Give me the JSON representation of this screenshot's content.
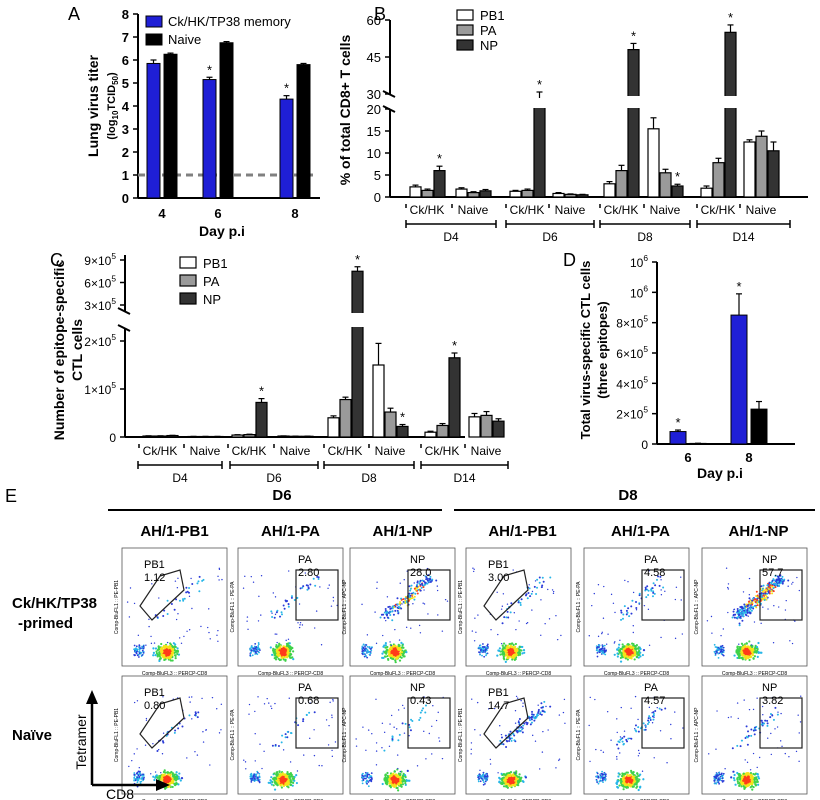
{
  "colors": {
    "blue": "#1f1fd6",
    "black": "#000000",
    "gray": "#9a9a9a",
    "dark": "#333333",
    "white": "#ffffff",
    "dash": "#808080"
  },
  "chart_data": [
    {
      "panel": "A",
      "type": "bar",
      "ylabel_line1": "Lung virus titer",
      "ylabel_line2": "(log",
      "ylabel_sub": "10",
      "ylabel_line2b": "TCID",
      "ylabel_sub2": "50",
      "ylabel_end": ")",
      "xlabel": "Day p.i",
      "categories": [
        "4",
        "6",
        "8"
      ],
      "ylim": [
        0,
        8
      ],
      "yticks": [
        "0",
        "1",
        "2",
        "3",
        "4",
        "5",
        "6",
        "7",
        "8"
      ],
      "reference_line": 1,
      "series": [
        {
          "name": "Ck/HK/TP38 memory",
          "color": "blue",
          "values": [
            5.85,
            5.15,
            4.3
          ],
          "errors": [
            0.15,
            0.1,
            0.15
          ],
          "stars": [
            false,
            true,
            true
          ]
        },
        {
          "name": "Naive",
          "color": "black",
          "values": [
            6.25,
            6.75,
            5.8
          ],
          "errors": [
            0.05,
            0.05,
            0.05
          ],
          "stars": [
            false,
            false,
            false
          ]
        }
      ]
    },
    {
      "panel": "B",
      "type": "bar",
      "ylabel": "% of total CD8+ T cells",
      "yticks_low": [
        "0",
        "5",
        "10",
        "15",
        "20"
      ],
      "yticks_high": [
        "30",
        "45",
        "60"
      ],
      "legend": [
        "PB1",
        "PA",
        "NP"
      ],
      "groups": [
        {
          "day": "D4",
          "cond": "Ck/HK",
          "PB1": 2.3,
          "PA": 1.5,
          "NP": 6.0,
          "e": [
            0.4,
            0.3,
            1.0
          ],
          "star": [
            false,
            false,
            true
          ]
        },
        {
          "day": "D4",
          "cond": "Naive",
          "PB1": 1.8,
          "PA": 1.0,
          "NP": 1.4,
          "e": [
            0.3,
            0.2,
            0.3
          ],
          "star": [
            false,
            false,
            false
          ]
        },
        {
          "day": "D6",
          "cond": "Ck/HK",
          "PB1": 1.3,
          "PA": 1.5,
          "NP": 25.0,
          "e": [
            0.2,
            0.3,
            2.0
          ],
          "star": [
            false,
            false,
            true
          ]
        },
        {
          "day": "D6",
          "cond": "Naive",
          "PB1": 0.8,
          "PA": 0.6,
          "NP": 0.5,
          "e": [
            0.2,
            0.1,
            0.1
          ],
          "star": [
            false,
            false,
            false
          ]
        },
        {
          "day": "D8",
          "cond": "Ck/HK",
          "PB1": 3.0,
          "PA": 6.0,
          "NP": 48.0,
          "e": [
            0.5,
            1.2,
            2.5
          ],
          "star": [
            false,
            false,
            true
          ]
        },
        {
          "day": "D8",
          "cond": "Naive",
          "PB1": 15.5,
          "PA": 5.5,
          "NP": 2.5,
          "e": [
            2.5,
            0.8,
            0.4
          ],
          "star": [
            false,
            false,
            true
          ]
        },
        {
          "day": "D14",
          "cond": "Ck/HK",
          "PB1": 2.0,
          "PA": 7.8,
          "NP": 55.0,
          "e": [
            0.5,
            1.0,
            3.0
          ],
          "star": [
            false,
            false,
            true
          ]
        },
        {
          "day": "D14",
          "cond": "Naive",
          "PB1": 12.5,
          "PA": 13.8,
          "NP": 10.5,
          "e": [
            0.5,
            1.2,
            2.0
          ],
          "star": [
            false,
            false,
            false
          ]
        }
      ]
    },
    {
      "panel": "C",
      "type": "bar",
      "ylabel_line1": "Number of epitope-specific",
      "ylabel_line2": "CTL cells",
      "yticks_low": [
        "0",
        "1×10",
        "2×10"
      ],
      "yticks_high": [
        "3×10",
        "6×10",
        "9×10"
      ],
      "ytick_exp": "5",
      "legend": [
        "PB1",
        "PA",
        "NP"
      ],
      "groups": [
        {
          "day": "D4",
          "cond": "Ck/HK",
          "PB1": 2000,
          "PA": 2000,
          "NP": 3000,
          "e": [
            500,
            500,
            500
          ],
          "star": [
            false,
            false,
            false
          ]
        },
        {
          "day": "D4",
          "cond": "Naive",
          "PB1": 1000,
          "PA": 1000,
          "NP": 1000,
          "e": [
            300,
            300,
            300
          ],
          "star": [
            false,
            false,
            false
          ]
        },
        {
          "day": "D6",
          "cond": "Ck/HK",
          "PB1": 4000,
          "PA": 5000,
          "NP": 72000,
          "e": [
            800,
            800,
            8000
          ],
          "star": [
            false,
            false,
            true
          ]
        },
        {
          "day": "D6",
          "cond": "Naive",
          "PB1": 2000,
          "PA": 1500,
          "NP": 1500,
          "e": [
            300,
            300,
            300
          ],
          "star": [
            false,
            false,
            false
          ]
        },
        {
          "day": "D8",
          "cond": "Ck/HK",
          "PB1": 40000,
          "PA": 78000,
          "NP": 750000,
          "e": [
            4000,
            5000,
            60000
          ],
          "star": [
            false,
            false,
            true
          ]
        },
        {
          "day": "D8",
          "cond": "Naive",
          "PB1": 150000,
          "PA": 52000,
          "NP": 22000,
          "e": [
            45000,
            8000,
            4000
          ],
          "star": [
            false,
            false,
            true
          ]
        },
        {
          "day": "D14",
          "cond": "Ck/HK",
          "PB1": 10000,
          "PA": 24000,
          "NP": 165000,
          "e": [
            2000,
            4000,
            10000
          ],
          "star": [
            false,
            false,
            true
          ]
        },
        {
          "day": "D14",
          "cond": "Naive",
          "PB1": 42000,
          "PA": 45000,
          "NP": 33000,
          "e": [
            7000,
            8000,
            5000
          ],
          "star": [
            false,
            false,
            false
          ]
        }
      ]
    },
    {
      "panel": "D",
      "type": "bar",
      "ylabel_line1": "Total virus-specific CTL cells",
      "ylabel_line2": "(three epitopes)",
      "xlabel": "Day p.i",
      "categories": [
        "6",
        "8"
      ],
      "yticks": [
        {
          "m": "0",
          "e": ""
        },
        {
          "m": "2×10",
          "e": "5"
        },
        {
          "m": "4×10",
          "e": "5"
        },
        {
          "m": "6×10",
          "e": "5"
        },
        {
          "m": "8×10",
          "e": "5"
        },
        {
          "m": "10",
          "e": "6"
        },
        {
          "m": "10",
          "e": "6"
        }
      ],
      "ylim": [
        0,
        1200000
      ],
      "series": [
        {
          "name": "Ck/HK",
          "color": "blue",
          "values": [
            82000,
            850000
          ],
          "errors": [
            10000,
            140000
          ],
          "stars": [
            true,
            true
          ]
        },
        {
          "name": "Naive",
          "color": "black",
          "values": [
            4000,
            230000
          ],
          "errors": [
            1000,
            50000
          ],
          "stars": [
            false,
            false
          ]
        }
      ]
    }
  ],
  "panels": {
    "a": "A",
    "b": "B",
    "c": "C",
    "d": "D",
    "e": "E",
    "star": "*"
  },
  "flow": {
    "days": [
      "D6",
      "D8"
    ],
    "columns": [
      "AH/1-PB1",
      "AH/1-PA",
      "AH/1-NP",
      "AH/1-PB1",
      "AH/1-PA",
      "AH/1-NP"
    ],
    "rows": [
      {
        "label_line1": "Ck/HK/TP38",
        "label_line2": "-primed",
        "gates": [
          {
            "name": "PB1",
            "value": "1.12"
          },
          {
            "name": "PA",
            "value": "2.80"
          },
          {
            "name": "NP",
            "value": "28.0"
          },
          {
            "name": "PB1",
            "value": "3.00"
          },
          {
            "name": "PA",
            "value": "4.58"
          },
          {
            "name": "NP",
            "value": "57.7"
          }
        ]
      },
      {
        "label_line1": "Naïve",
        "label_line2": "",
        "gates": [
          {
            "name": "PB1",
            "value": "0.80"
          },
          {
            "name": "PA",
            "value": "0.68"
          },
          {
            "name": "NP",
            "value": "0.43"
          },
          {
            "name": "PB1",
            "value": "14.7"
          },
          {
            "name": "PA",
            "value": "4.57"
          },
          {
            "name": "NP",
            "value": "3.82"
          }
        ]
      }
    ],
    "xaxis_caption": "Comp-BluFL3 :: PERCP-CD8",
    "yaxis_captions": [
      "Comp-BluFL1 :: PE-PB1",
      "Comp-BluFL1 :: PE-PA",
      "Comp-BluFL1 :: APC-NP"
    ],
    "tetramer_label": "Tetramer",
    "cd8_label": "CD8"
  }
}
